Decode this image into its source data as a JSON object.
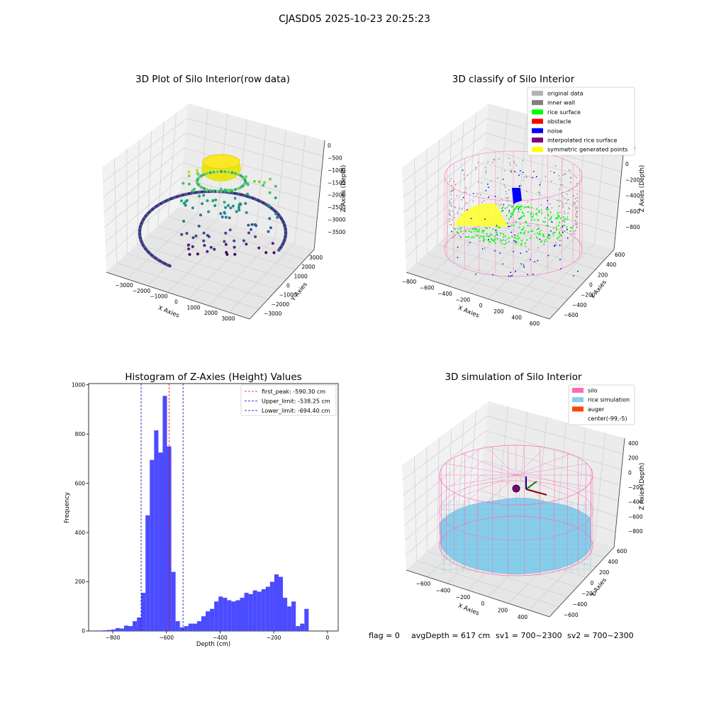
{
  "figure": {
    "suptitle": "CJASD05 2025-10-23 20:25:23",
    "footer": {
      "flag": "flag = 0",
      "avg": "avgDepth = 617 cm",
      "sv1": "sv1 = 700~2300",
      "sv2": "sv2 = 700~2300"
    }
  },
  "colors": {
    "hist_bar": "#4b4bff",
    "peak_line": "#ff0000",
    "limit_line": "#0000cc",
    "silo": "#ff69b4",
    "rice": "#87ceeb",
    "auger": "#ff4500",
    "pane": "#f2f2f2",
    "grid": "#cfcfcf"
  },
  "chart_data": [
    {
      "type": "scatter",
      "title": "3D Plot of Silo Interior(row data)",
      "xlabel": "X Axies",
      "ylabel": "Y Axies",
      "zlabel": "Z Axies (Depth)",
      "xticks": [
        "−3000",
        "−2000",
        "−1000",
        "0",
        "1000",
        "2000",
        "3000"
      ],
      "yticks": [
        "3000",
        "2000",
        "1000",
        "0",
        "−1000",
        "−2000",
        "−3000"
      ],
      "zticks": [
        "0",
        "−500",
        "−1000",
        "−1500",
        "−2000",
        "−2500",
        "−3000",
        "−3500"
      ],
      "colormap": "viridis"
    },
    {
      "type": "scatter",
      "title": "3D classify of Silo Interior",
      "xlabel": "X Axies",
      "ylabel": "Y Axies",
      "zlabel": "Z Axies (Depth)",
      "xticks": [
        "−800",
        "−600",
        "−400",
        "−200",
        "0",
        "200",
        "400",
        "600"
      ],
      "yticks": [
        "600",
        "400",
        "200",
        "0",
        "−200",
        "−400",
        "−600"
      ],
      "zticks": [
        "200",
        "0",
        "−200",
        "−400",
        "−600",
        "−800"
      ],
      "legend_position": "top-right",
      "legend": [
        {
          "label": "original data",
          "color": "#b3b3b3"
        },
        {
          "label": "inner wall",
          "color": "#808080"
        },
        {
          "label": "rice surface",
          "color": "#00ff00"
        },
        {
          "label": "obstacle",
          "color": "#ff0000"
        },
        {
          "label": "noise",
          "color": "#0000ff"
        },
        {
          "label": "interpolated rice surface",
          "color": "#800080"
        },
        {
          "label": "symmetric generated points",
          "color": "#ffff00"
        }
      ]
    },
    {
      "type": "bar",
      "title": "Histogram of Z-Axies (Height) Values",
      "xlabel": "Depth (cm)",
      "ylabel": "Frequency",
      "xlim": [
        -890,
        40
      ],
      "ylim": [
        0,
        1005
      ],
      "xticks": [
        -800,
        -600,
        -400,
        -200,
        0
      ],
      "xtick_labels": [
        "−800",
        "−600",
        "−400",
        "−200",
        "0"
      ],
      "yticks": [
        0,
        200,
        400,
        600,
        800,
        1000
      ],
      "bin_width": 16,
      "bin_starts": [
        -870,
        -854,
        -838,
        -822,
        -806,
        -790,
        -774,
        -758,
        -742,
        -726,
        -710,
        -694,
        -678,
        -662,
        -646,
        -630,
        -614,
        -598,
        -582,
        -566,
        -550,
        -534,
        -518,
        -502,
        -486,
        -470,
        -454,
        -438,
        -422,
        -406,
        -390,
        -374,
        -358,
        -342,
        -326,
        -310,
        -294,
        -278,
        -262,
        -246,
        -230,
        -214,
        -198,
        -182,
        -166,
        -150,
        -134,
        -118,
        -102,
        -86,
        -70,
        -54,
        -38,
        -22,
        -6
      ],
      "values": [
        2,
        2,
        3,
        4,
        6,
        12,
        10,
        22,
        20,
        40,
        55,
        155,
        470,
        695,
        815,
        725,
        955,
        750,
        240,
        40,
        15,
        20,
        30,
        30,
        40,
        60,
        80,
        90,
        120,
        140,
        135,
        125,
        120,
        125,
        135,
        155,
        150,
        165,
        160,
        170,
        180,
        200,
        230,
        220,
        135,
        100,
        120,
        20,
        30,
        90,
        0,
        0,
        0,
        0,
        0
      ],
      "vlines": [
        {
          "name": "first_peak",
          "label": "first_peak: -590.30 cm",
          "x": -590.3,
          "color": "#ff0000"
        },
        {
          "name": "upper",
          "label": "Upper_limit: -538.25 cm",
          "x": -538.25,
          "color": "#0000cc"
        },
        {
          "name": "lower",
          "label": "Lower_limit: -694.40 cm",
          "x": -694.4,
          "color": "#0000cc"
        }
      ],
      "legend_position": "top-right"
    },
    {
      "type": "scatter",
      "title": "3D simulation of Silo Interior",
      "xlabel": "X Axies",
      "ylabel": "Y Axies",
      "zlabel": "Z Axies (Depth)",
      "xticks": [
        "−600",
        "−400",
        "−200",
        "0",
        "200",
        "400"
      ],
      "yticks": [
        "600",
        "400",
        "200",
        "0",
        "−200",
        "−400",
        "−600"
      ],
      "zticks": [
        "400",
        "200",
        "0",
        "−200",
        "−400",
        "−600",
        "−800"
      ],
      "legend_position": "top-right",
      "legend": [
        {
          "label": "silo",
          "color": "#ff69b4"
        },
        {
          "label": "rice simulation",
          "color": "#87ceeb"
        },
        {
          "label": "auger",
          "color": "#ff4500"
        },
        {
          "label": "center(-99,-5)",
          "color": "none"
        }
      ]
    }
  ]
}
